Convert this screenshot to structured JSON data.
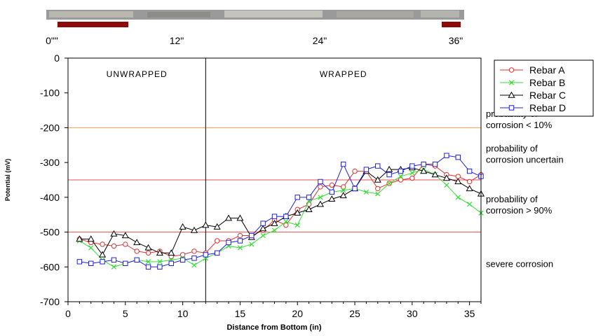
{
  "photo_strip": {
    "markers": [
      "0\"\"",
      "12\"",
      "24\"",
      "36\""
    ]
  },
  "chart_data": {
    "type": "line",
    "xlabel": "Distance from Bottom (in)",
    "ylabel": "Potential (mV)",
    "xlim": [
      0,
      36
    ],
    "ylim": [
      -700,
      0
    ],
    "xticks": [
      0,
      5,
      10,
      15,
      20,
      25,
      30,
      35
    ],
    "yticks": [
      0,
      -100,
      -200,
      -300,
      -400,
      -500,
      -600,
      -700
    ],
    "grid": false,
    "legend_position": "top-right",
    "regions": [
      {
        "label": "UNWRAPPED",
        "x_from": 0,
        "x_to": 12
      },
      {
        "label": "WRAPPED",
        "x_from": 12,
        "x_to": 36
      }
    ],
    "divider_x": 12,
    "thresholds": [
      {
        "y": -200,
        "color": "#f5a04a"
      },
      {
        "y": -350,
        "color": "#e05050"
      },
      {
        "y": -500,
        "color": "#e05050"
      }
    ],
    "zone_annotations": [
      {
        "lines": [
          "probability of",
          "corrosion < 10%"
        ],
        "y": -175
      },
      {
        "lines": [
          "probability of",
          "corrosion uncertain"
        ],
        "y": -275
      },
      {
        "lines": [
          "probability of",
          "corrosion > 90%"
        ],
        "y": -420
      },
      {
        "lines": [
          "severe corrosion"
        ],
        "y": -590
      }
    ],
    "x": [
      1,
      2,
      3,
      4,
      5,
      6,
      7,
      8,
      9,
      10,
      11,
      12,
      13,
      14,
      15,
      16,
      17,
      18,
      19,
      20,
      21,
      22,
      23,
      24,
      25,
      26,
      27,
      28,
      29,
      30,
      31,
      32,
      33,
      34,
      35,
      36
    ],
    "series": [
      {
        "name": "Rebar A",
        "color": "#e03030",
        "marker": "circle",
        "values": [
          -520,
          -530,
          -535,
          -540,
          -535,
          -555,
          -560,
          -555,
          -570,
          -565,
          -555,
          -560,
          -525,
          -525,
          -510,
          -510,
          -495,
          -465,
          -480,
          -435,
          -420,
          -370,
          -365,
          -370,
          -325,
          -325,
          -375,
          -360,
          -350,
          -345,
          -305,
          -310,
          -335,
          -340,
          -355,
          -335
        ]
      },
      {
        "name": "Rebar B",
        "color": "#33dd33",
        "marker": "x",
        "values": [
          -525,
          -545,
          -580,
          -600,
          -590,
          -580,
          -585,
          -585,
          -580,
          -575,
          -595,
          -575,
          -560,
          -540,
          -545,
          -535,
          -510,
          -495,
          -470,
          -480,
          -410,
          -400,
          -385,
          -380,
          -375,
          -385,
          -390,
          -360,
          -340,
          -330,
          -320,
          -335,
          -365,
          -400,
          -420,
          -445
        ]
      },
      {
        "name": "Rebar C",
        "color": "#000000",
        "marker": "triangle",
        "values": [
          -520,
          -520,
          -565,
          -505,
          -510,
          -530,
          -545,
          -560,
          -560,
          -485,
          -495,
          -480,
          -485,
          -460,
          -460,
          -515,
          -490,
          -475,
          -455,
          -445,
          -435,
          -420,
          -405,
          -395,
          -375,
          -325,
          -350,
          -320,
          -320,
          -315,
          -325,
          -335,
          -345,
          -355,
          -375,
          -390
        ]
      },
      {
        "name": "Rebar D",
        "color": "#2020dd",
        "marker": "square",
        "values": [
          -585,
          -590,
          -585,
          -580,
          -590,
          -580,
          -600,
          -600,
          -590,
          -580,
          -575,
          -565,
          -560,
          -530,
          -525,
          -510,
          -475,
          -455,
          -455,
          -400,
          -400,
          -355,
          -385,
          -305,
          -375,
          -320,
          -310,
          -335,
          -325,
          -310,
          -305,
          -305,
          -280,
          -285,
          -325,
          -340
        ]
      }
    ]
  }
}
